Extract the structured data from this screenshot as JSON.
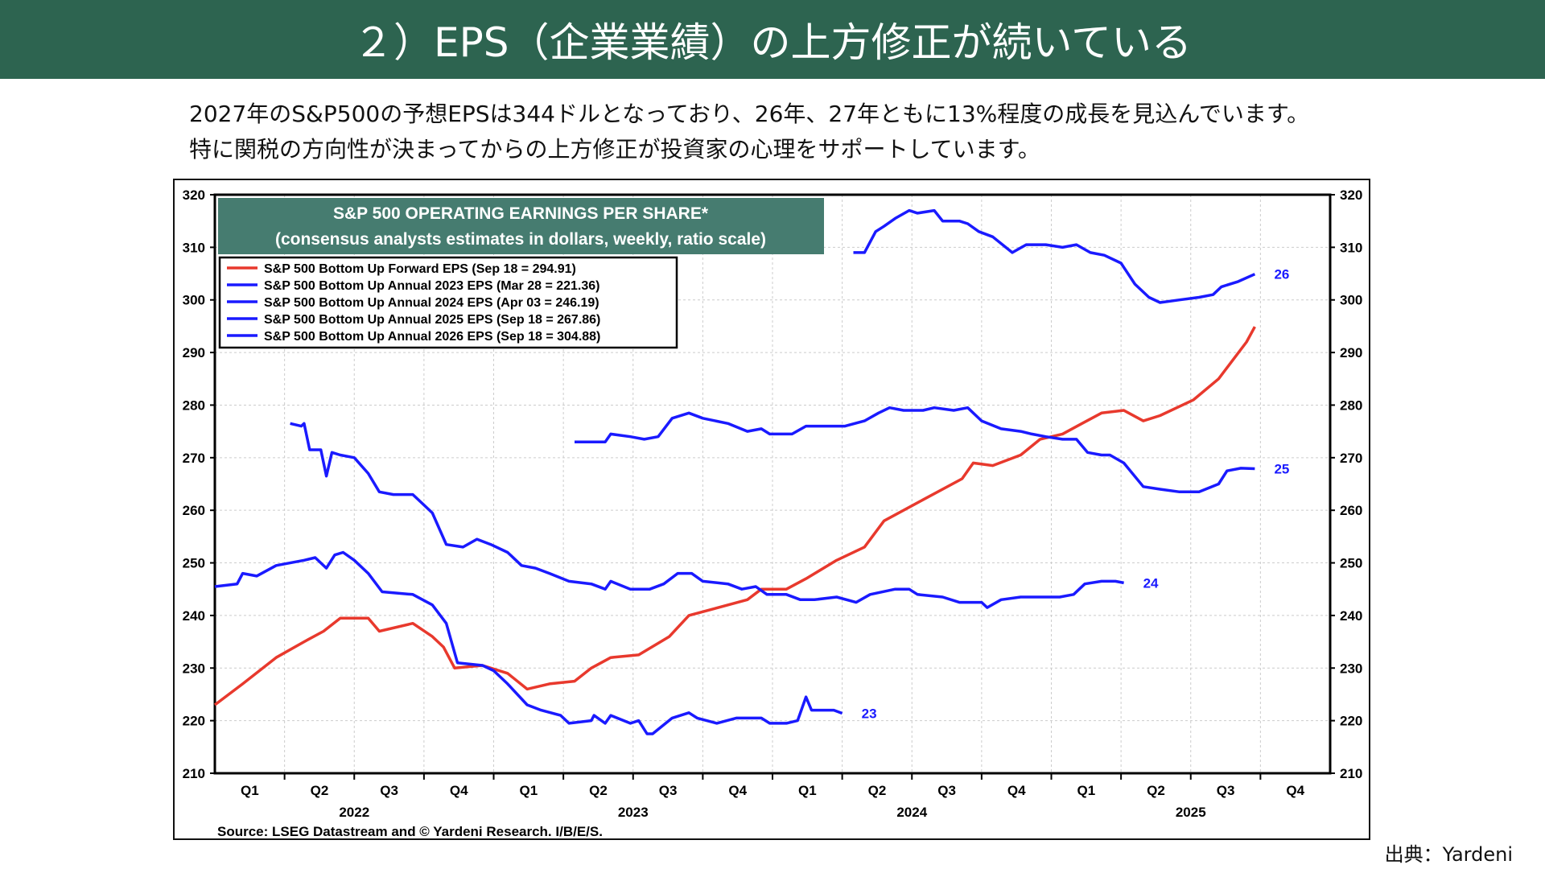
{
  "header": {
    "title": "２）EPS（企業業績）の上方修正が続いている"
  },
  "description": [
    "2027年のS&P500の予想EPSは344ドルとなっており、26年、27年ともに13%程度の成長を見込んでいます。",
    "特に関税の方向性が決まってからの上方修正が投資家の心理をサポートしています。"
  ],
  "credit": "出典：Yardeni",
  "chart_data": {
    "type": "line",
    "title": "S&P 500 OPERATING EARNINGS PER SHARE*",
    "subtitle": "(consensus analysts estimates in dollars, weekly, ratio scale)",
    "source": "Source: LSEG Datastream and © Yardeni Research. I/B/E/S.",
    "ylim": [
      210,
      320
    ],
    "yticks": [
      210,
      220,
      230,
      240,
      250,
      260,
      270,
      280,
      290,
      300,
      310,
      320
    ],
    "xlim": [
      2022,
      2026
    ],
    "quarter_labels": [
      "Q1",
      "Q2",
      "Q3",
      "Q4"
    ],
    "years": [
      "2022",
      "2023",
      "2024",
      "2025"
    ],
    "colors": {
      "forward": "#e8392d",
      "annual": "#1a1aff",
      "title_bg": "#467c70"
    },
    "series": [
      {
        "name": "S&P 500 Bottom Up Forward EPS (Sep 18 = 294.91)",
        "color": "#e8392d",
        "end_label": "",
        "points": [
          [
            2022.0,
            223
          ],
          [
            2022.1,
            227
          ],
          [
            2022.22,
            232
          ],
          [
            2022.32,
            235
          ],
          [
            2022.39,
            237
          ],
          [
            2022.45,
            239.5
          ],
          [
            2022.55,
            239.5
          ],
          [
            2022.59,
            237
          ],
          [
            2022.71,
            238.5
          ],
          [
            2022.78,
            236
          ],
          [
            2022.82,
            234
          ],
          [
            2022.86,
            230
          ],
          [
            2022.96,
            230.5
          ],
          [
            2023.05,
            229
          ],
          [
            2023.12,
            226
          ],
          [
            2023.2,
            227
          ],
          [
            2023.29,
            227.5
          ],
          [
            2023.35,
            230
          ],
          [
            2023.42,
            232
          ],
          [
            2023.52,
            232.5
          ],
          [
            2023.63,
            236
          ],
          [
            2023.7,
            240
          ],
          [
            2023.77,
            241
          ],
          [
            2023.91,
            243
          ],
          [
            2023.96,
            245
          ],
          [
            2024.05,
            245
          ],
          [
            2024.12,
            247
          ],
          [
            2024.23,
            250.5
          ],
          [
            2024.33,
            253
          ],
          [
            2024.4,
            258
          ],
          [
            2024.54,
            262
          ],
          [
            2024.68,
            266
          ],
          [
            2024.72,
            269
          ],
          [
            2024.79,
            268.5
          ],
          [
            2024.89,
            270.5
          ],
          [
            2024.96,
            273.5
          ],
          [
            2025.04,
            274.5
          ],
          [
            2025.11,
            276.5
          ],
          [
            2025.18,
            278.5
          ],
          [
            2025.26,
            279
          ],
          [
            2025.33,
            277
          ],
          [
            2025.39,
            278
          ],
          [
            2025.51,
            281
          ],
          [
            2025.6,
            285
          ],
          [
            2025.65,
            288.5
          ],
          [
            2025.7,
            292
          ],
          [
            2025.73,
            294.9
          ]
        ]
      },
      {
        "name": "S&P 500 Bottom Up Annual 2023 EPS (Mar 28 = 221.36)",
        "color": "#1a1aff",
        "end_label": "23",
        "points": [
          [
            2022.0,
            245.5
          ],
          [
            2022.08,
            246
          ],
          [
            2022.1,
            248
          ],
          [
            2022.15,
            247.5
          ],
          [
            2022.22,
            249.5
          ],
          [
            2022.32,
            250.5
          ],
          [
            2022.36,
            251
          ],
          [
            2022.4,
            249
          ],
          [
            2022.43,
            251.5
          ],
          [
            2022.46,
            252
          ],
          [
            2022.5,
            250.5
          ],
          [
            2022.55,
            248
          ],
          [
            2022.6,
            244.5
          ],
          [
            2022.71,
            244
          ],
          [
            2022.78,
            242
          ],
          [
            2022.83,
            238.5
          ],
          [
            2022.87,
            231
          ],
          [
            2022.96,
            230.5
          ],
          [
            2023.0,
            229.5
          ],
          [
            2023.05,
            227
          ],
          [
            2023.12,
            223
          ],
          [
            2023.17,
            222
          ],
          [
            2023.24,
            221
          ],
          [
            2023.27,
            219.5
          ],
          [
            2023.35,
            220
          ],
          [
            2023.36,
            221
          ],
          [
            2023.4,
            219.5
          ],
          [
            2023.42,
            221
          ],
          [
            2023.49,
            219.5
          ],
          [
            2023.52,
            220
          ],
          [
            2023.55,
            217.5
          ],
          [
            2023.57,
            217.5
          ],
          [
            2023.64,
            220.5
          ],
          [
            2023.7,
            221.5
          ],
          [
            2023.73,
            220.5
          ],
          [
            2023.8,
            219.5
          ],
          [
            2023.87,
            220.5
          ],
          [
            2023.96,
            220.5
          ],
          [
            2023.99,
            219.5
          ],
          [
            2024.05,
            219.5
          ],
          [
            2024.09,
            220
          ],
          [
            2024.12,
            224.5
          ],
          [
            2024.14,
            222
          ],
          [
            2024.22,
            222
          ],
          [
            2024.25,
            221.4
          ]
        ]
      },
      {
        "name": "S&P 500 Bottom Up Annual 2024 EPS (Apr 03 = 246.19)",
        "color": "#1a1aff",
        "end_label": "24",
        "points": [
          [
            2022.27,
            276.5
          ],
          [
            2022.31,
            276
          ],
          [
            2022.32,
            276.5
          ],
          [
            2022.34,
            271.5
          ],
          [
            2022.38,
            271.5
          ],
          [
            2022.4,
            266.5
          ],
          [
            2022.42,
            271
          ],
          [
            2022.45,
            270.5
          ],
          [
            2022.5,
            270
          ],
          [
            2022.55,
            267
          ],
          [
            2022.59,
            263.5
          ],
          [
            2022.64,
            263
          ],
          [
            2022.71,
            263
          ],
          [
            2022.75,
            261
          ],
          [
            2022.78,
            259.5
          ],
          [
            2022.83,
            253.5
          ],
          [
            2022.89,
            253
          ],
          [
            2022.94,
            254.5
          ],
          [
            2022.99,
            253.5
          ],
          [
            2023.05,
            252
          ],
          [
            2023.1,
            249.5
          ],
          [
            2023.15,
            249
          ],
          [
            2023.2,
            248
          ],
          [
            2023.27,
            246.5
          ],
          [
            2023.35,
            246
          ],
          [
            2023.4,
            245
          ],
          [
            2023.42,
            246.5
          ],
          [
            2023.49,
            245
          ],
          [
            2023.56,
            245
          ],
          [
            2023.61,
            246
          ],
          [
            2023.66,
            248
          ],
          [
            2023.71,
            248
          ],
          [
            2023.75,
            246.5
          ],
          [
            2023.84,
            246
          ],
          [
            2023.89,
            245
          ],
          [
            2023.94,
            245.5
          ],
          [
            2023.98,
            244
          ],
          [
            2024.05,
            244
          ],
          [
            2024.1,
            243
          ],
          [
            2024.15,
            243
          ],
          [
            2024.23,
            243.5
          ],
          [
            2024.3,
            242.5
          ],
          [
            2024.35,
            244
          ],
          [
            2024.44,
            245
          ],
          [
            2024.49,
            245
          ],
          [
            2024.52,
            244
          ],
          [
            2024.61,
            243.5
          ],
          [
            2024.67,
            242.5
          ],
          [
            2024.75,
            242.5
          ],
          [
            2024.77,
            241.5
          ],
          [
            2024.82,
            243
          ],
          [
            2024.89,
            243.5
          ],
          [
            2024.96,
            243.5
          ],
          [
            2025.03,
            243.5
          ],
          [
            2025.08,
            244
          ],
          [
            2025.12,
            246
          ],
          [
            2025.18,
            246.5
          ],
          [
            2025.23,
            246.5
          ],
          [
            2025.26,
            246.2
          ]
        ]
      },
      {
        "name": "S&P 500 Bottom Up Annual 2025 EPS (Sep 18 = 267.86)",
        "color": "#1a1aff",
        "end_label": "25",
        "points": [
          [
            2023.29,
            273
          ],
          [
            2023.35,
            273
          ],
          [
            2023.4,
            273
          ],
          [
            2023.42,
            274.5
          ],
          [
            2023.49,
            274
          ],
          [
            2023.54,
            273.5
          ],
          [
            2023.59,
            274
          ],
          [
            2023.64,
            277.5
          ],
          [
            2023.7,
            278.5
          ],
          [
            2023.75,
            277.5
          ],
          [
            2023.84,
            276.5
          ],
          [
            2023.91,
            275
          ],
          [
            2023.96,
            275.5
          ],
          [
            2023.99,
            274.5
          ],
          [
            2024.07,
            274.5
          ],
          [
            2024.12,
            276
          ],
          [
            2024.19,
            276
          ],
          [
            2024.26,
            276
          ],
          [
            2024.33,
            277
          ],
          [
            2024.38,
            278.5
          ],
          [
            2024.42,
            279.5
          ],
          [
            2024.47,
            279
          ],
          [
            2024.54,
            279
          ],
          [
            2024.58,
            279.5
          ],
          [
            2024.65,
            279
          ],
          [
            2024.7,
            279.5
          ],
          [
            2024.75,
            277
          ],
          [
            2024.82,
            275.5
          ],
          [
            2024.89,
            275
          ],
          [
            2024.93,
            274.5
          ],
          [
            2024.98,
            274
          ],
          [
            2025.04,
            273.5
          ],
          [
            2025.09,
            273.5
          ],
          [
            2025.13,
            271
          ],
          [
            2025.18,
            270.5
          ],
          [
            2025.21,
            270.5
          ],
          [
            2025.26,
            269
          ],
          [
            2025.33,
            264.5
          ],
          [
            2025.39,
            264
          ],
          [
            2025.46,
            263.5
          ],
          [
            2025.53,
            263.5
          ],
          [
            2025.6,
            265
          ],
          [
            2025.63,
            267.5
          ],
          [
            2025.68,
            268
          ],
          [
            2025.73,
            267.9
          ]
        ]
      },
      {
        "name": "S&P 500 Bottom Up Annual 2026 EPS (Sep 18 = 304.88)",
        "color": "#1a1aff",
        "end_label": "26",
        "points": [
          [
            2024.29,
            309
          ],
          [
            2024.33,
            309
          ],
          [
            2024.37,
            313
          ],
          [
            2024.4,
            314
          ],
          [
            2024.44,
            315.5
          ],
          [
            2024.49,
            317
          ],
          [
            2024.52,
            316.5
          ],
          [
            2024.58,
            317
          ],
          [
            2024.61,
            315
          ],
          [
            2024.67,
            315
          ],
          [
            2024.7,
            314.5
          ],
          [
            2024.74,
            313
          ],
          [
            2024.79,
            312
          ],
          [
            2024.86,
            309
          ],
          [
            2024.91,
            310.5
          ],
          [
            2024.98,
            310.5
          ],
          [
            2025.04,
            310
          ],
          [
            2025.09,
            310.5
          ],
          [
            2025.14,
            309
          ],
          [
            2025.19,
            308.5
          ],
          [
            2025.25,
            307
          ],
          [
            2025.3,
            303
          ],
          [
            2025.35,
            300.5
          ],
          [
            2025.39,
            299.5
          ],
          [
            2025.46,
            300
          ],
          [
            2025.53,
            300.5
          ],
          [
            2025.58,
            301
          ],
          [
            2025.61,
            302.5
          ],
          [
            2025.67,
            303.5
          ],
          [
            2025.73,
            304.9
          ]
        ]
      }
    ]
  }
}
